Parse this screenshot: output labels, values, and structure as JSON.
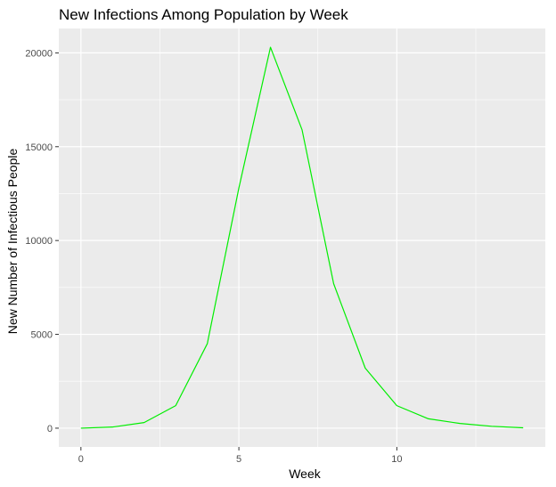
{
  "chart_data": {
    "type": "line",
    "title": "New Infections Among Population by Week",
    "xlabel": "Week",
    "ylabel": "New Number of Infectious People",
    "xlim": [
      -0.7,
      14.7
    ],
    "ylim": [
      -1000,
      21300
    ],
    "x_ticks": [
      0,
      5,
      10
    ],
    "y_ticks": [
      0,
      5000,
      10000,
      15000,
      20000
    ],
    "grid": true,
    "legend": "none",
    "series": [
      {
        "color": "#00ee00",
        "x": [
          0,
          1,
          2,
          3,
          4,
          5,
          6,
          7,
          8,
          9,
          10,
          11,
          12,
          13,
          14
        ],
        "y": [
          0,
          60,
          300,
          1200,
          4500,
          12800,
          20300,
          15900,
          7700,
          3200,
          1200,
          500,
          250,
          100,
          20
        ]
      }
    ]
  },
  "colors": {
    "panel_bg": "#ebebeb",
    "grid_major": "#ffffff",
    "tick_mark": "#333333"
  }
}
